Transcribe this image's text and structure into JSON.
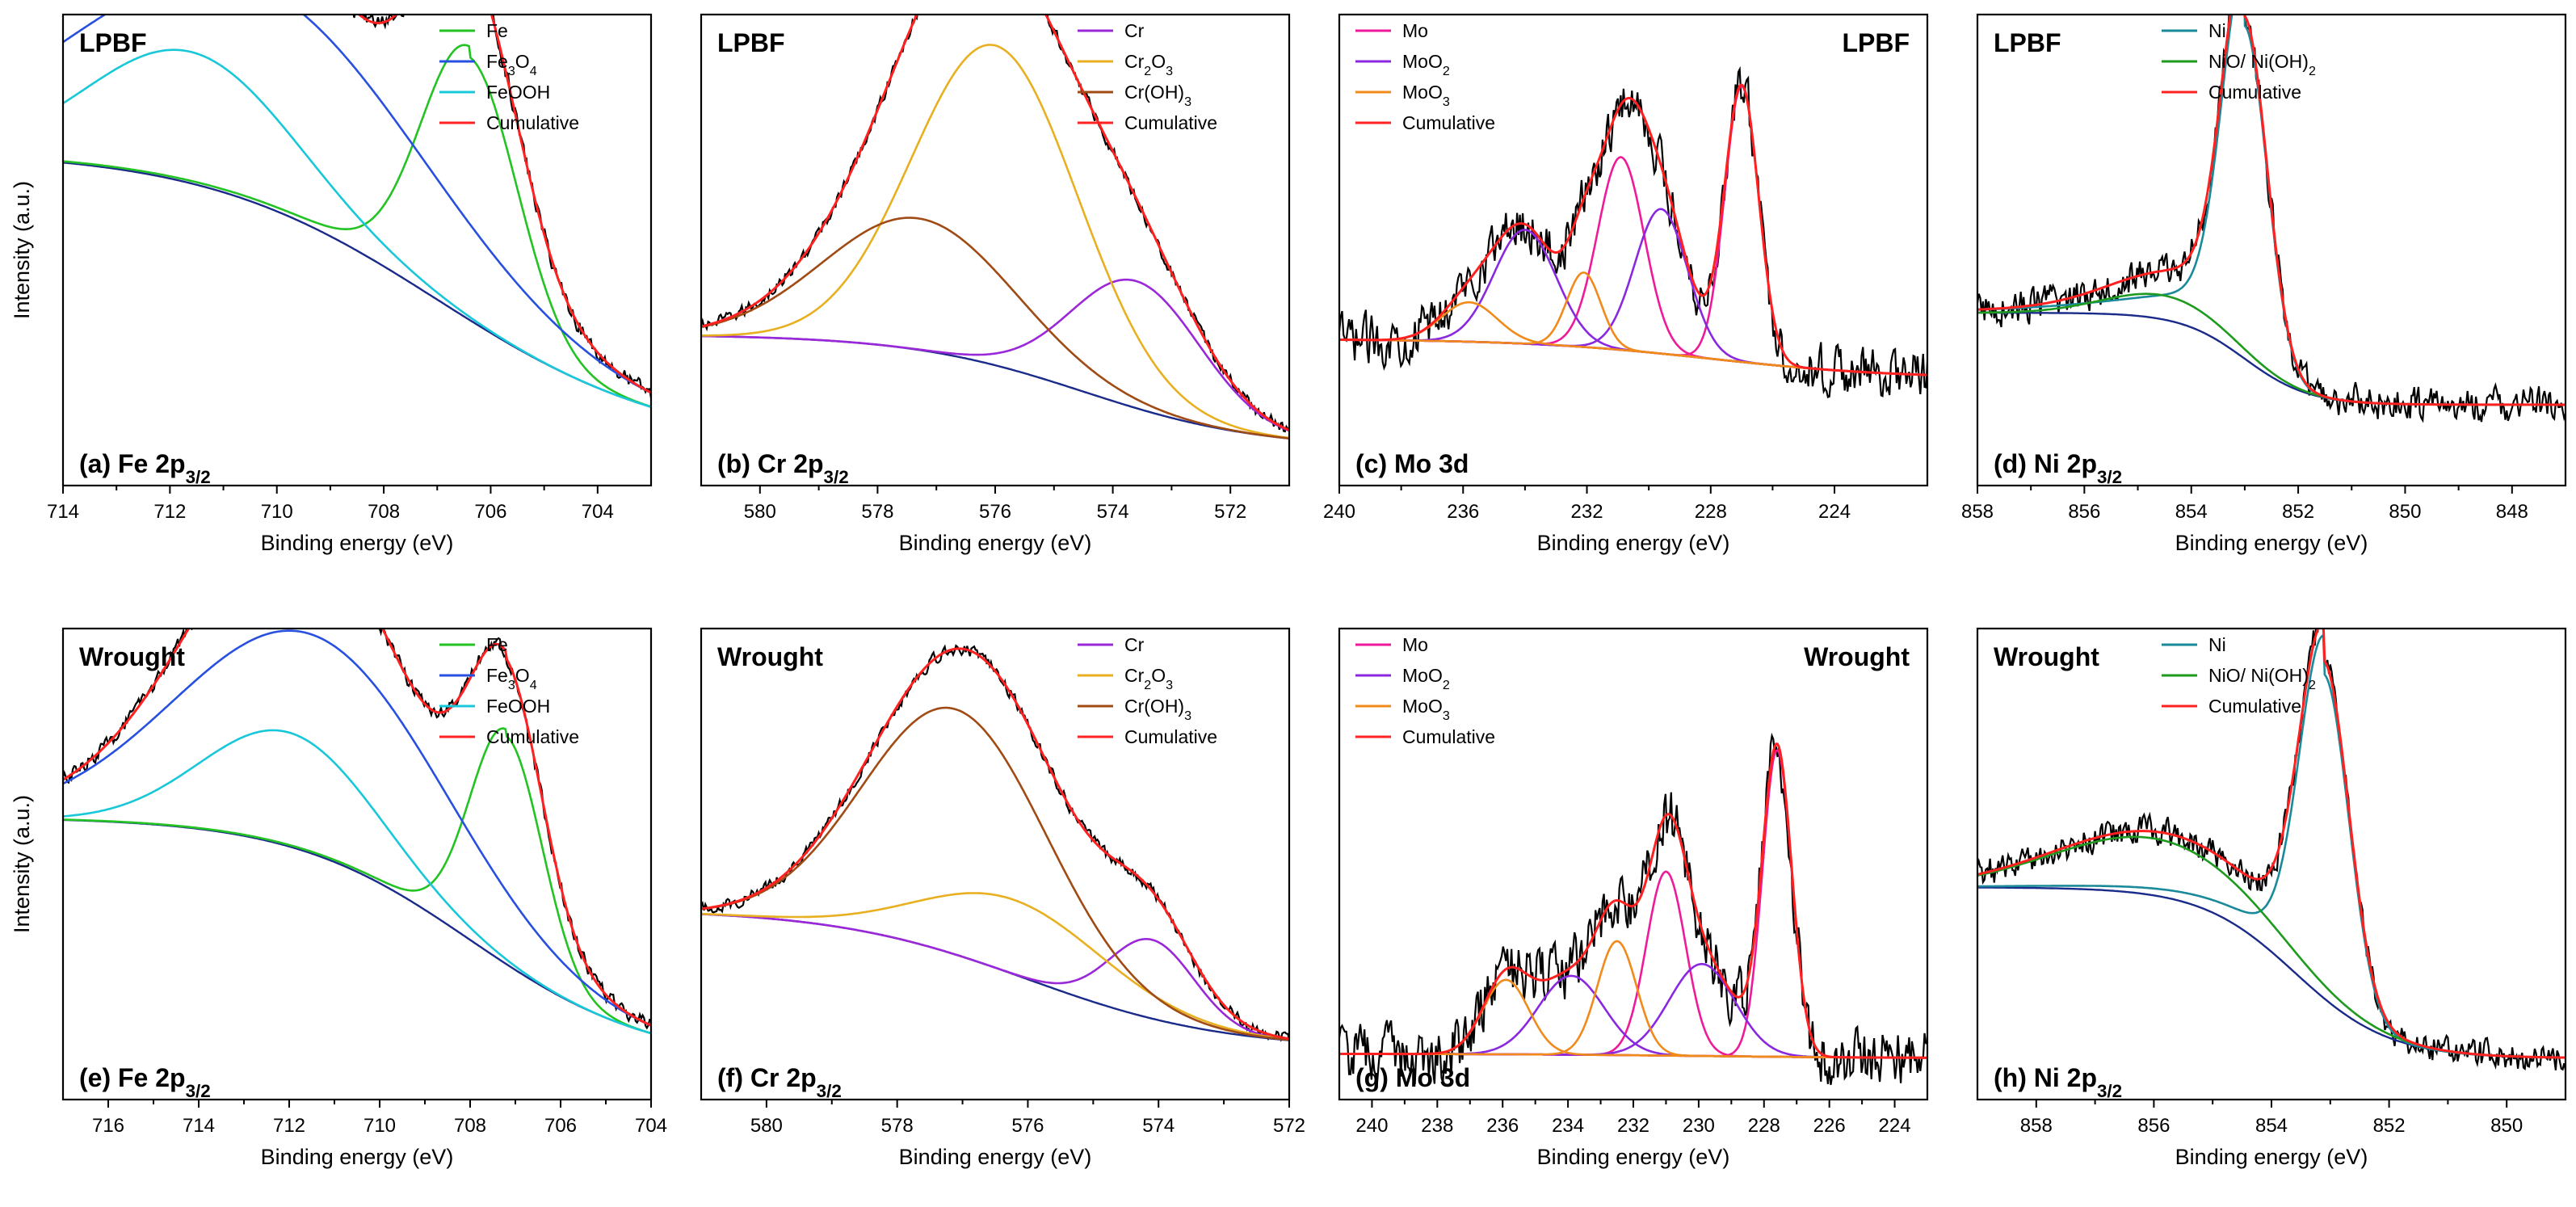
{
  "ylabel": "Intensity (a.u.)",
  "colors": {
    "raw": "#000000",
    "cumulative": "#ff2020",
    "background": "#1a2a8a",
    "Fe": "#22c322",
    "Fe3O4": "#2850e0",
    "FeOOH": "#18c8d8",
    "Cr": "#9b28d8",
    "Cr2O3": "#e8b020",
    "CrOH3": "#a04a14",
    "Mo": "#ee1a9a",
    "MoO2": "#8a28e0",
    "MoO3": "#f08a1a",
    "Ni": "#1a8a9a",
    "NiO": "#1e9a1e"
  },
  "chart_data": [
    {
      "type": "line",
      "element": "Fe",
      "sample": "LPBF",
      "condition_label": "LPBF",
      "label_pos": "top-left",
      "panel": "(a) Fe 2p",
      "sub": "3/2",
      "xlabel": "Binding energy (eV)",
      "ylabel": "Intensity (a.u.)",
      "xlim": [
        714,
        703
      ],
      "ylim": [
        0,
        1.0
      ],
      "xticks": [
        "714",
        "712",
        "710",
        "708",
        "706",
        "704"
      ],
      "xtick_values": [
        714,
        712,
        710,
        708,
        706,
        704
      ],
      "background": {
        "x0": 714,
        "x1": 703,
        "y0": 0.7,
        "y1": 0.02,
        "center": 707.0,
        "width": 2.2
      },
      "raw_noise": 0.016,
      "legend": [
        {
          "label": "Fe",
          "color_key": "Fe",
          "sub": ""
        },
        {
          "label": "Fe",
          "sub": "3",
          "rest": "O",
          "sub2": "4",
          "color_key": "Fe3O4"
        },
        {
          "label": "FeOOH",
          "color_key": "FeOOH",
          "sub": ""
        },
        {
          "label": "Cumulative",
          "color_key": "cumulative",
          "sub": ""
        }
      ],
      "series": [
        {
          "name": "Fe",
          "color_key": "Fe",
          "center": 706.4,
          "height": 0.6,
          "width": 0.9,
          "tail": 0.04
        },
        {
          "name": "Fe3O4",
          "color_key": "Fe3O4",
          "center": 710.5,
          "height": 0.5,
          "width": 3.2
        },
        {
          "name": "FeOOH",
          "color_key": "FeOOH",
          "center": 711.6,
          "height": 0.3,
          "width": 1.9
        }
      ]
    },
    {
      "type": "line",
      "element": "Cr",
      "sample": "LPBF",
      "condition_label": "LPBF",
      "label_pos": "top-left",
      "panel": "(b) Cr 2p",
      "sub": "3/2",
      "xlabel": "Binding energy (eV)",
      "ylabel": "",
      "xlim": [
        581,
        571
      ],
      "ylim": [
        0,
        1.0
      ],
      "xticks": [
        "580",
        "578",
        "576",
        "574",
        "572"
      ],
      "xtick_values": [
        580,
        578,
        576,
        574,
        572
      ],
      "background": {
        "x0": 581,
        "x1": 571,
        "y0": 0.28,
        "y1": 0.02,
        "center": 574.5,
        "width": 1.5
      },
      "raw_noise": 0.012,
      "legend": [
        {
          "label": "Cr",
          "color_key": "Cr",
          "sub": ""
        },
        {
          "label": "Cr",
          "sub": "2",
          "rest": "O",
          "sub2": "3",
          "color_key": "Cr2O3"
        },
        {
          "label": "Cr(OH)",
          "sub": "3",
          "color_key": "CrOH3"
        },
        {
          "label": "Cumulative",
          "color_key": "cumulative",
          "sub": ""
        }
      ],
      "series": [
        {
          "name": "Cr",
          "color_key": "Cr",
          "center": 573.6,
          "height": 0.29,
          "width": 1.1
        },
        {
          "name": "Cr2O3",
          "color_key": "Cr2O3",
          "center": 576.0,
          "height": 0.73,
          "width": 1.4
        },
        {
          "name": "Cr(OH)3",
          "color_key": "CrOH3",
          "center": 577.3,
          "height": 0.3,
          "width": 1.6
        }
      ]
    },
    {
      "type": "line",
      "element": "Mo",
      "sample": "LPBF",
      "condition_label": "LPBF",
      "label_pos": "top-right",
      "panel": "(c) Mo 3d",
      "sub": "",
      "xlabel": "Binding energy (eV)",
      "ylabel": "",
      "xlim": [
        240,
        221
      ],
      "ylim": [
        0,
        1.0
      ],
      "xticks": [
        "240",
        "236",
        "232",
        "228",
        "224"
      ],
      "xtick_values": [
        240,
        236,
        232,
        228,
        224
      ],
      "background": {
        "x0": 240,
        "x1": 221,
        "y0": 0.27,
        "y1": 0.18,
        "center": 228,
        "width": 3
      },
      "raw_noise": 0.05,
      "legend": [
        {
          "label": "Mo",
          "color_key": "Mo",
          "sub": ""
        },
        {
          "label": "MoO",
          "sub": "2",
          "color_key": "MoO2"
        },
        {
          "label": "MoO",
          "sub": "3",
          "color_key": "MoO3"
        },
        {
          "label": "Cumulative",
          "color_key": "cumulative",
          "sub": ""
        }
      ],
      "series": [
        {
          "name": "Mo",
          "color_key": "Mo",
          "center": 227.0,
          "height": 0.63,
          "width": 0.55
        },
        {
          "name": "Mo",
          "color_key": "Mo",
          "center": 230.9,
          "height": 0.44,
          "width": 0.75
        },
        {
          "name": "MoO2",
          "color_key": "MoO2",
          "center": 229.6,
          "height": 0.33,
          "width": 0.85
        },
        {
          "name": "MoO2",
          "color_key": "MoO2",
          "center": 234.0,
          "height": 0.26,
          "width": 1.0
        },
        {
          "name": "MoO3",
          "color_key": "MoO3",
          "center": 232.1,
          "height": 0.17,
          "width": 0.55
        },
        {
          "name": "MoO3",
          "color_key": "MoO3",
          "center": 235.8,
          "height": 0.09,
          "width": 0.9
        }
      ]
    },
    {
      "type": "line",
      "element": "Ni",
      "sample": "LPBF",
      "condition_label": "LPBF",
      "label_pos": "top-left",
      "panel": "(d) Ni 2p",
      "sub": "3/2",
      "xlabel": "Binding energy (eV)",
      "ylabel": "",
      "xlim": [
        858,
        847
      ],
      "ylim": [
        0,
        1.0
      ],
      "xticks": [
        "858",
        "856",
        "854",
        "852",
        "850",
        "848"
      ],
      "xtick_values": [
        858,
        856,
        854,
        852,
        850,
        848
      ],
      "background": {
        "x0": 858,
        "x1": 847,
        "y0": 0.33,
        "y1": 0.12,
        "center": 853,
        "width": 0.6
      },
      "raw_noise": 0.035,
      "legend": [
        {
          "label": "Ni",
          "color_key": "Ni",
          "sub": ""
        },
        {
          "label": "NiO/ Ni(OH)",
          "sub": "2",
          "color_key": "NiO"
        },
        {
          "label": "Cumulative",
          "color_key": "cumulative",
          "sub": ""
        }
      ],
      "series": [
        {
          "name": "Ni",
          "color_key": "Ni",
          "center": 853.0,
          "height": 0.76,
          "width": 0.42,
          "tail": 0.18
        },
        {
          "name": "NiO/ Ni(OH)2",
          "color_key": "NiO",
          "center": 854.5,
          "height": 0.055,
          "width": 1.1
        }
      ]
    },
    {
      "type": "line",
      "element": "Fe",
      "sample": "Wrought",
      "condition_label": "Wrought",
      "label_pos": "top-left",
      "panel": "(e) Fe 2p",
      "sub": "3/2",
      "xlabel": "Binding energy (eV)",
      "ylabel": "Intensity (a.u.)",
      "xlim": [
        717,
        704
      ],
      "ylim": [
        0,
        1.0
      ],
      "xticks": [
        "716",
        "714",
        "712",
        "710",
        "708",
        "706",
        "704"
      ],
      "xtick_values": [
        716,
        714,
        712,
        710,
        708,
        706,
        704
      ],
      "background": {
        "x0": 717,
        "x1": 704,
        "y0": 0.58,
        "y1": 0.02,
        "center": 708.0,
        "width": 2.0
      },
      "raw_noise": 0.014,
      "legend": [
        {
          "label": "Fe",
          "color_key": "Fe",
          "sub": ""
        },
        {
          "label": "Fe",
          "sub": "3",
          "rest": "O",
          "sub2": "4",
          "color_key": "Fe3O4"
        },
        {
          "label": "FeOOH",
          "color_key": "FeOOH",
          "sub": ""
        },
        {
          "label": "Cumulative",
          "color_key": "cumulative",
          "sub": ""
        }
      ],
      "series": [
        {
          "name": "Fe",
          "color_key": "Fe",
          "center": 707.2,
          "height": 0.52,
          "width": 0.8,
          "tail": 0.03
        },
        {
          "name": "Fe3O4",
          "color_key": "Fe3O4",
          "center": 711.5,
          "height": 0.5,
          "width": 2.9
        },
        {
          "name": "FeOOH",
          "color_key": "FeOOH",
          "center": 712.0,
          "height": 0.26,
          "width": 1.9
        }
      ]
    },
    {
      "type": "line",
      "element": "Cr",
      "sample": "Wrought",
      "condition_label": "Wrought",
      "label_pos": "top-left",
      "panel": "(f) Cr 2p",
      "sub": "3/2",
      "xlabel": "Binding energy (eV)",
      "ylabel": "",
      "xlim": [
        581,
        572
      ],
      "ylim": [
        0,
        1.0
      ],
      "xticks": [
        "580",
        "578",
        "576",
        "574",
        "572"
      ],
      "xtick_values": [
        580,
        578,
        576,
        574,
        572
      ],
      "background": {
        "x0": 581,
        "x1": 572,
        "y0": 0.37,
        "y1": 0.05,
        "center": 576.0,
        "width": 1.5
      },
      "raw_noise": 0.012,
      "legend": [
        {
          "label": "Cr",
          "color_key": "Cr",
          "sub": ""
        },
        {
          "label": "Cr",
          "sub": "2",
          "rest": "O",
          "sub2": "3",
          "color_key": "Cr2O3"
        },
        {
          "label": "Cr(OH)",
          "sub": "3",
          "color_key": "CrOH3"
        },
        {
          "label": "Cumulative",
          "color_key": "cumulative",
          "sub": ""
        }
      ],
      "series": [
        {
          "name": "Cr",
          "color_key": "Cr",
          "center": 574.1,
          "height": 0.18,
          "width": 0.65
        },
        {
          "name": "Cr2O3",
          "color_key": "Cr2O3",
          "center": 576.2,
          "height": 0.17,
          "width": 1.4
        },
        {
          "name": "Cr(OH)3",
          "color_key": "CrOH3",
          "center": 577.1,
          "height": 0.56,
          "width": 1.4
        }
      ]
    },
    {
      "type": "line",
      "element": "Mo",
      "sample": "Wrought",
      "condition_label": "Wrought",
      "label_pos": "top-right",
      "panel": "(g) Mo 3d",
      "sub": "",
      "xlabel": "Binding energy (eV)",
      "ylabel": "",
      "xlim": [
        241,
        223
      ],
      "ylim": [
        0,
        1.0
      ],
      "xticks": [
        "240",
        "238",
        "236",
        "234",
        "232",
        "230",
        "228",
        "226",
        "224"
      ],
      "xtick_values": [
        240,
        238,
        236,
        234,
        232,
        230,
        228,
        226,
        224
      ],
      "background": {
        "x0": 241,
        "x1": 223,
        "y0": 0.04,
        "y1": 0.03,
        "center": 230,
        "width": 3
      },
      "raw_noise": 0.06,
      "legend": [
        {
          "label": "Mo",
          "color_key": "Mo",
          "sub": ""
        },
        {
          "label": "MoO",
          "sub": "2",
          "color_key": "MoO2"
        },
        {
          "label": "MoO",
          "sub": "3",
          "color_key": "MoO3"
        },
        {
          "label": "Cumulative",
          "color_key": "cumulative",
          "sub": ""
        }
      ],
      "series": [
        {
          "name": "Mo",
          "color_key": "Mo",
          "center": 227.6,
          "height": 0.7,
          "width": 0.45
        },
        {
          "name": "Mo",
          "color_key": "Mo",
          "center": 231.0,
          "height": 0.42,
          "width": 0.6
        },
        {
          "name": "MoO2",
          "color_key": "MoO2",
          "center": 229.9,
          "height": 0.21,
          "width": 1.0
        },
        {
          "name": "MoO2",
          "color_key": "MoO2",
          "center": 233.9,
          "height": 0.18,
          "width": 1.0
        },
        {
          "name": "MoO3",
          "color_key": "MoO3",
          "center": 232.5,
          "height": 0.26,
          "width": 0.6
        },
        {
          "name": "MoO3",
          "color_key": "MoO3",
          "center": 235.9,
          "height": 0.17,
          "width": 0.7
        }
      ]
    },
    {
      "type": "line",
      "element": "Ni",
      "sample": "Wrought",
      "condition_label": "Wrought",
      "label_pos": "top-left",
      "panel": "(h) Ni 2p",
      "sub": "3/2",
      "xlabel": "Binding energy (eV)",
      "ylabel": "",
      "xlim": [
        859,
        849
      ],
      "ylim": [
        0,
        1.0
      ],
      "xticks": [
        "858",
        "856",
        "854",
        "852",
        "850"
      ],
      "xtick_values": [
        858,
        856,
        854,
        852,
        850
      ],
      "background": {
        "x0": 859,
        "x1": 849,
        "y0": 0.42,
        "y1": 0.03,
        "center": 853.6,
        "width": 0.8
      },
      "raw_noise": 0.03,
      "legend": [
        {
          "label": "Ni",
          "color_key": "Ni",
          "sub": ""
        },
        {
          "label": "NiO/ Ni(OH)",
          "sub": "2",
          "color_key": "NiO"
        },
        {
          "label": "Cumulative",
          "color_key": "cumulative",
          "sub": ""
        }
      ],
      "series": [
        {
          "name": "Ni",
          "color_key": "Ni",
          "center": 853.1,
          "height": 0.74,
          "width": 0.42,
          "tail": 0.12
        },
        {
          "name": "NiO/ Ni(OH)2",
          "color_key": "NiO",
          "center": 856.0,
          "height": 0.13,
          "width": 1.7
        }
      ]
    }
  ]
}
